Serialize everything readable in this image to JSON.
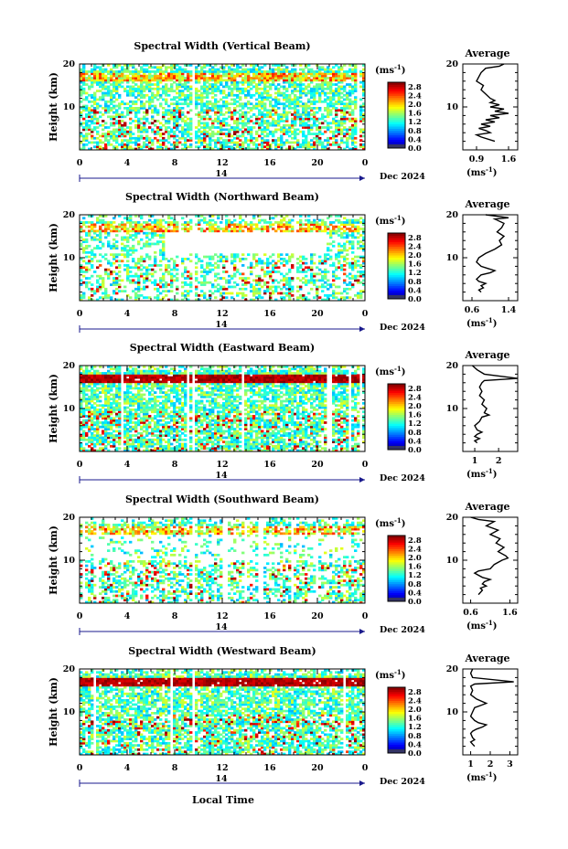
{
  "chart_data": {
    "type": "heatmap",
    "common": {
      "ylabel": "Height (km)",
      "xticks": [
        "0",
        "4",
        "8",
        "12",
        "16",
        "20",
        "0"
      ],
      "xlim": [
        0,
        24
      ],
      "ylim_km": [
        0,
        20
      ],
      "yticks": [
        "20",
        "10"
      ],
      "day_label": "14",
      "date_label": "Dec 2024",
      "xlabel": "Local Time",
      "colorbar_unit": "(ms-1)",
      "colorbar_ticks": [
        "2.8",
        "2.4",
        "2.0",
        "1.6",
        "1.2",
        "0.8",
        "0.4",
        "0.0"
      ],
      "colorbar_range": [
        0,
        3.0
      ],
      "avg_title": "Average",
      "avg_unit": "(ms-1)"
    },
    "panels": [
      {
        "title": "Spectral Width (Vertical Beam)",
        "avg_xticks": [
          "0.9",
          "1.6"
        ],
        "avg_xlim": [
          0.6,
          1.8
        ],
        "avg_profile": [
          [
            1.5,
            20
          ],
          [
            1.4,
            19.5
          ],
          [
            1.1,
            19
          ],
          [
            1.0,
            18
          ],
          [
            0.95,
            17
          ],
          [
            0.9,
            16
          ],
          [
            1.05,
            15
          ],
          [
            1.0,
            14
          ],
          [
            1.1,
            13
          ],
          [
            1.2,
            12
          ],
          [
            1.3,
            11.5
          ],
          [
            1.2,
            11
          ],
          [
            1.4,
            10.5
          ],
          [
            1.2,
            10
          ],
          [
            1.5,
            9.5
          ],
          [
            1.3,
            9
          ],
          [
            1.6,
            8.5
          ],
          [
            1.2,
            8
          ],
          [
            1.4,
            7.5
          ],
          [
            1.1,
            7
          ],
          [
            1.3,
            6.5
          ],
          [
            1.0,
            6
          ],
          [
            1.2,
            5.5
          ],
          [
            0.95,
            5
          ],
          [
            1.1,
            4.5
          ],
          [
            1.2,
            4
          ],
          [
            0.9,
            3.5
          ],
          [
            1.0,
            3
          ],
          [
            1.3,
            2
          ]
        ]
      },
      {
        "title": "Spectral Width (Northward Beam)",
        "avg_xticks": [
          "0.6",
          "1.4"
        ],
        "avg_xlim": [
          0.4,
          1.6
        ],
        "avg_profile": [
          [
            0.9,
            20
          ],
          [
            1.2,
            19.6
          ],
          [
            1.4,
            19.3
          ],
          [
            1.1,
            19
          ],
          [
            1.3,
            18
          ],
          [
            1.25,
            17
          ],
          [
            1.15,
            16
          ],
          [
            1.3,
            15
          ],
          [
            1.2,
            14
          ],
          [
            1.25,
            13
          ],
          [
            1.1,
            12
          ],
          [
            0.9,
            11
          ],
          [
            0.75,
            10
          ],
          [
            0.7,
            9
          ],
          [
            0.8,
            8
          ],
          [
            0.95,
            7.5
          ],
          [
            1.1,
            7
          ],
          [
            1.0,
            6.5
          ],
          [
            0.8,
            6
          ],
          [
            0.7,
            5
          ],
          [
            0.75,
            4.5
          ],
          [
            0.9,
            4
          ],
          [
            0.8,
            3.5
          ],
          [
            0.85,
            3
          ],
          [
            0.75,
            2.5
          ],
          [
            0.8,
            2
          ]
        ]
      },
      {
        "title": "Spectral Width (Eastward Beam)",
        "avg_xticks": [
          "1",
          "2"
        ],
        "avg_xlim": [
          0.5,
          2.8
        ],
        "avg_profile": [
          [
            0.9,
            20
          ],
          [
            1.1,
            19
          ],
          [
            1.4,
            18
          ],
          [
            2.8,
            17
          ],
          [
            1.4,
            16.5
          ],
          [
            1.3,
            16
          ],
          [
            1.2,
            15
          ],
          [
            1.3,
            14
          ],
          [
            1.2,
            13
          ],
          [
            1.4,
            12
          ],
          [
            1.3,
            11
          ],
          [
            1.5,
            10
          ],
          [
            1.4,
            9
          ],
          [
            1.6,
            8.5
          ],
          [
            1.3,
            8
          ],
          [
            1.2,
            7
          ],
          [
            1.0,
            6
          ],
          [
            1.1,
            5
          ],
          [
            1.3,
            4.5
          ],
          [
            1.1,
            4
          ],
          [
            1.0,
            3.5
          ],
          [
            1.2,
            3
          ],
          [
            1.0,
            2.5
          ],
          [
            1.1,
            2
          ]
        ]
      },
      {
        "title": "Spectral Width (Southward Beam)",
        "avg_xticks": [
          "0.6",
          "1.6"
        ],
        "avg_xlim": [
          0.4,
          1.8
        ],
        "avg_profile": [
          [
            0.6,
            20
          ],
          [
            0.8,
            19.5
          ],
          [
            1.2,
            19
          ],
          [
            1.0,
            18
          ],
          [
            1.3,
            17
          ],
          [
            1.1,
            16
          ],
          [
            1.35,
            15
          ],
          [
            1.25,
            14
          ],
          [
            1.45,
            13
          ],
          [
            1.3,
            12
          ],
          [
            1.5,
            11
          ],
          [
            1.55,
            10.5
          ],
          [
            1.4,
            10
          ],
          [
            1.2,
            9
          ],
          [
            1.1,
            8
          ],
          [
            0.8,
            7.5
          ],
          [
            0.7,
            7
          ],
          [
            0.9,
            6
          ],
          [
            1.1,
            5.5
          ],
          [
            0.95,
            5
          ],
          [
            0.9,
            4.5
          ],
          [
            1.0,
            4
          ],
          [
            0.85,
            3.5
          ],
          [
            0.9,
            3
          ],
          [
            0.8,
            2
          ]
        ]
      },
      {
        "title": "Spectral Width (Westward Beam)",
        "avg_xticks": [
          "1",
          "2",
          "3"
        ],
        "avg_xlim": [
          0.6,
          3.4
        ],
        "avg_profile": [
          [
            1.1,
            20
          ],
          [
            1.0,
            19
          ],
          [
            1.1,
            18
          ],
          [
            3.2,
            17
          ],
          [
            1.2,
            16.5
          ],
          [
            1.0,
            16
          ],
          [
            1.1,
            15
          ],
          [
            1.0,
            14
          ],
          [
            1.3,
            13
          ],
          [
            1.8,
            12
          ],
          [
            1.5,
            11.5
          ],
          [
            1.2,
            11
          ],
          [
            1.1,
            10
          ],
          [
            1.0,
            9
          ],
          [
            1.2,
            8
          ],
          [
            1.4,
            7.5
          ],
          [
            1.8,
            7
          ],
          [
            1.6,
            6.5
          ],
          [
            1.3,
            6
          ],
          [
            1.1,
            5.5
          ],
          [
            1.0,
            5
          ],
          [
            1.1,
            4
          ],
          [
            1.2,
            3.5
          ],
          [
            1.0,
            3
          ],
          [
            1.1,
            2.5
          ],
          [
            1.2,
            2
          ]
        ]
      }
    ]
  }
}
